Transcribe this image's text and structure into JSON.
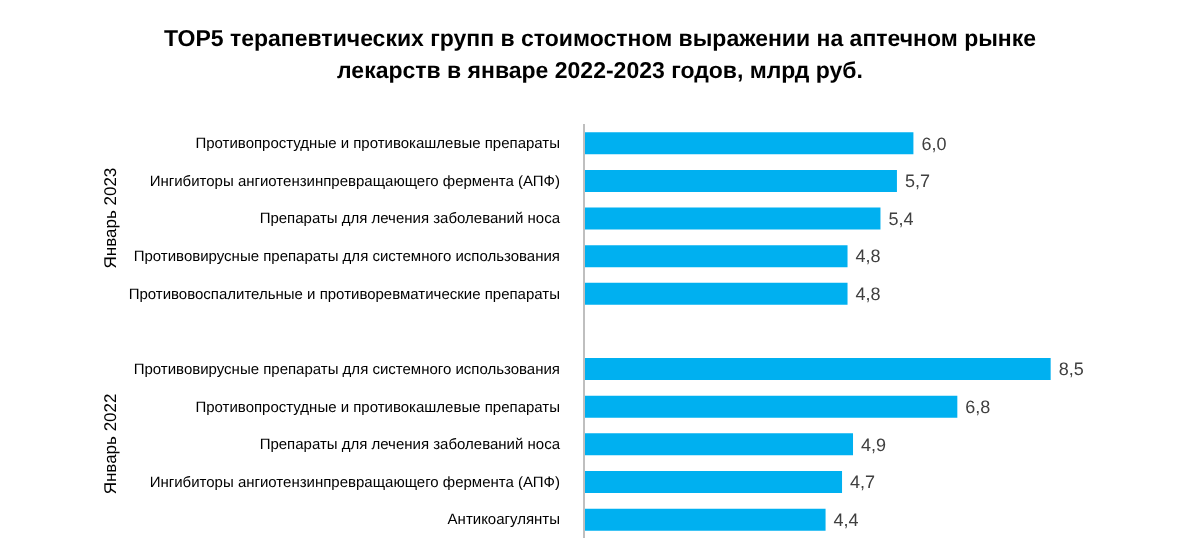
{
  "chart_data": {
    "type": "bar",
    "orientation": "horizontal",
    "title": "TOP5 терапевтических групп в стоимостном выражении на аптечном рынке лекарств в январе 2022-2023 годов, млрд руб.",
    "categories": [
      "Противопростудные и противокашлевые препараты",
      "Ингибиторы ангиотензинпревращающего фермента (АПФ)",
      "Препараты для лечения заболеваний носа",
      "Противовирусные препараты для системного использования",
      "Противовоспалительные и противоревматические препараты",
      null,
      "Противовирусные препараты для системного использования",
      "Противопростудные и противокашлевые препараты",
      "Препараты для лечения заболеваний носа",
      "Ингибиторы ангиотензинпревращающего фермента (АПФ)",
      "Антикоагулянты"
    ],
    "values": [
      6.0,
      5.7,
      5.4,
      4.8,
      4.8,
      null,
      8.5,
      6.8,
      4.9,
      4.7,
      4.4
    ],
    "value_labels": [
      "6,0",
      "5,7",
      "5,4",
      "4,8",
      "4,8",
      null,
      "8,5",
      "6,8",
      "4,9",
      "4,7",
      "4,4"
    ],
    "color": "#00b0f0",
    "annotations": [
      "Январь 2023",
      "Январь 2022"
    ]
  }
}
